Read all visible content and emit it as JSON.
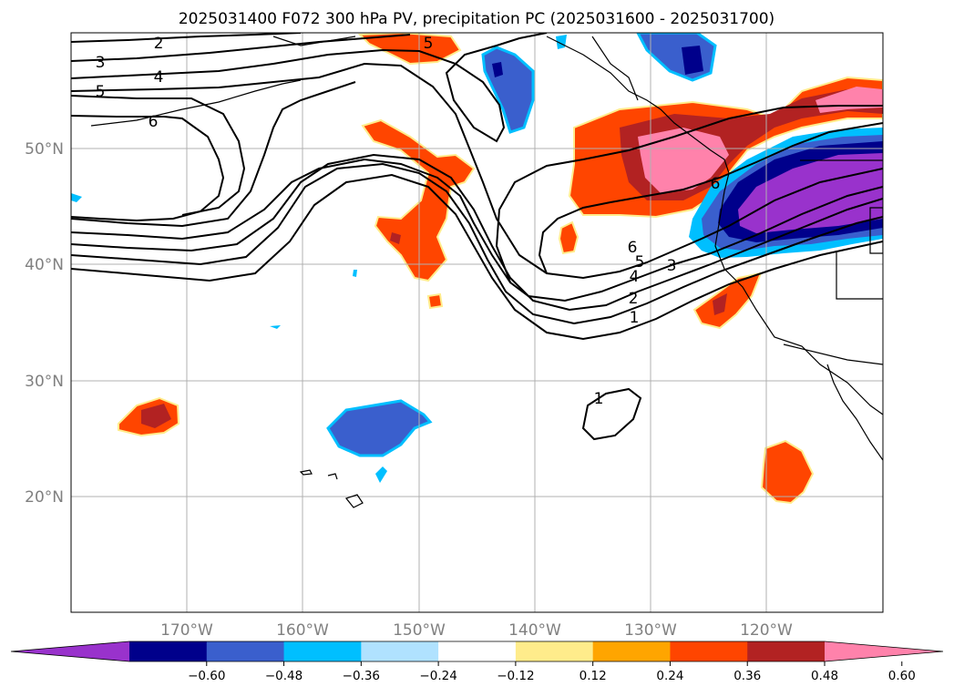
{
  "figure": {
    "title": "2025031400 F072 300 hPa PV, precipitation PC (2025031600 - 2025031700)"
  },
  "map": {
    "projection": "PlateCarree",
    "lon_range": [
      -180,
      -110
    ],
    "lat_range": [
      10,
      60
    ],
    "lon_ticks": [
      {
        "value": -170,
        "label": "170°W"
      },
      {
        "value": -160,
        "label": "160°W"
      },
      {
        "value": -150,
        "label": "150°W"
      },
      {
        "value": -140,
        "label": "140°W"
      },
      {
        "value": -130,
        "label": "130°W"
      },
      {
        "value": -120,
        "label": "120°W"
      }
    ],
    "lat_ticks": [
      {
        "value": 50,
        "label": "50°N"
      },
      {
        "value": 40,
        "label": "40°N"
      },
      {
        "value": 30,
        "label": "30°N"
      },
      {
        "value": 20,
        "label": "20°N"
      }
    ],
    "grid": true,
    "pv_contour_labels": [
      "1",
      "2",
      "3",
      "4",
      "5",
      "6"
    ]
  },
  "colorbar": {
    "extend": "both",
    "ticks": [
      "−0.60",
      "−0.48",
      "−0.36",
      "−0.24",
      "−0.12",
      "0.12",
      "0.24",
      "0.36",
      "0.48",
      "0.60"
    ],
    "colors": [
      "#9932cc",
      "#00008b",
      "#3a5fcd",
      "#00bfff",
      "#b0e2ff",
      "#ffffff",
      "#ffec8b",
      "#ffa500",
      "#ff4500",
      "#b22222",
      "#ff82ab"
    ]
  },
  "chart_data": {
    "type": "heatmap",
    "title": "2025031400 F072 300 hPa PV, precipitation PC (2025031600 - 2025031700)",
    "variables": [
      "300 hPa PV (contours)",
      "precipitation PC (filled)"
    ],
    "pv_contour_levels": [
      1,
      2,
      3,
      4,
      5,
      6
    ],
    "pc_levels": [
      -0.6,
      -0.48,
      -0.36,
      -0.24,
      -0.12,
      0.12,
      0.24,
      0.36,
      0.48,
      0.6
    ],
    "xlim": [
      -180,
      -110
    ],
    "ylim": [
      10,
      60
    ]
  }
}
